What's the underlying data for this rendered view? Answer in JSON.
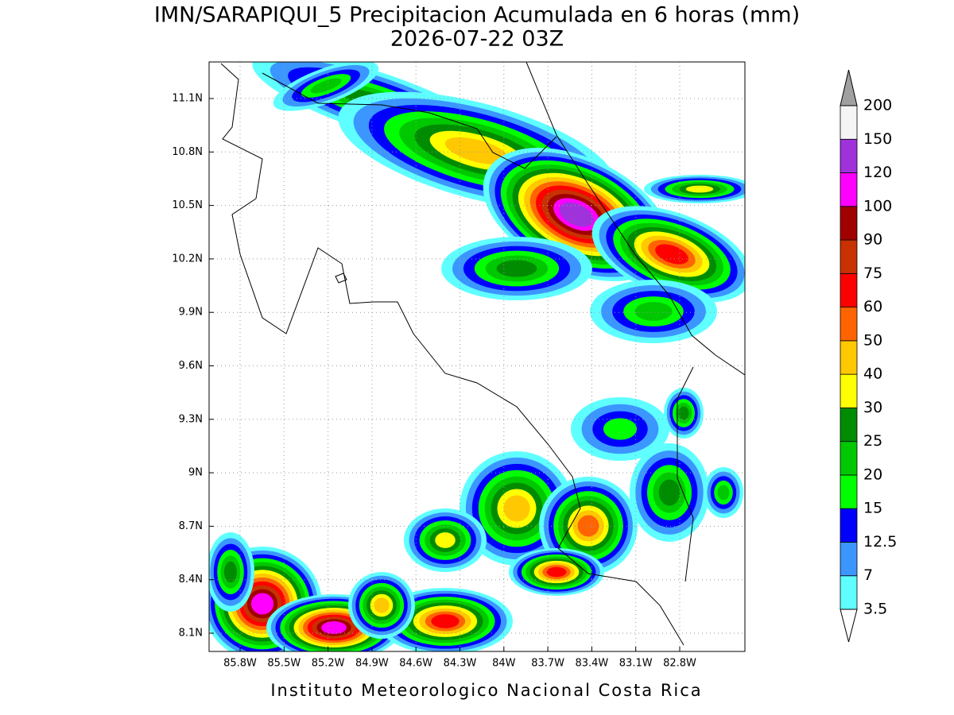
{
  "map": {
    "title": "IMN/SARAPIQUI_5 Precipitacion Acumulada en 6 horas (mm)",
    "subtitle": "2026-07-22 03Z",
    "lat_labels": [
      "11.1N",
      "10.8N",
      "10.5N",
      "10.2N",
      "9.9N",
      "9.6N",
      "9.3N",
      "9N",
      "8.7N",
      "8.4N",
      "8.1N"
    ],
    "lon_labels": [
      "85.8W",
      "85.5W",
      "85.2W",
      "84.9W",
      "84.6W",
      "84.3W",
      "84W",
      "83.7W",
      "83.4W",
      "83.1W",
      "82.8W"
    ],
    "colorbar": {
      "levels": [
        3.5,
        7,
        12.5,
        15,
        20,
        25,
        30,
        40,
        50,
        60,
        75,
        90,
        100,
        120,
        150,
        200
      ],
      "colors": [
        "#5fffff",
        "#3c96ff",
        "#0000ff",
        "#00ff00",
        "#00c800",
        "#008c00",
        "#ffff00",
        "#ffc800",
        "#ff6400",
        "#ff0000",
        "#c83200",
        "#a00000",
        "#ff00ff",
        "#a032dc",
        "#f5f5f5"
      ],
      "over_color": "#a0a0a0",
      "under_color": "#ffffff"
    },
    "footer": "Instituto Meteorologico Nacional Costa Rica"
  }
}
